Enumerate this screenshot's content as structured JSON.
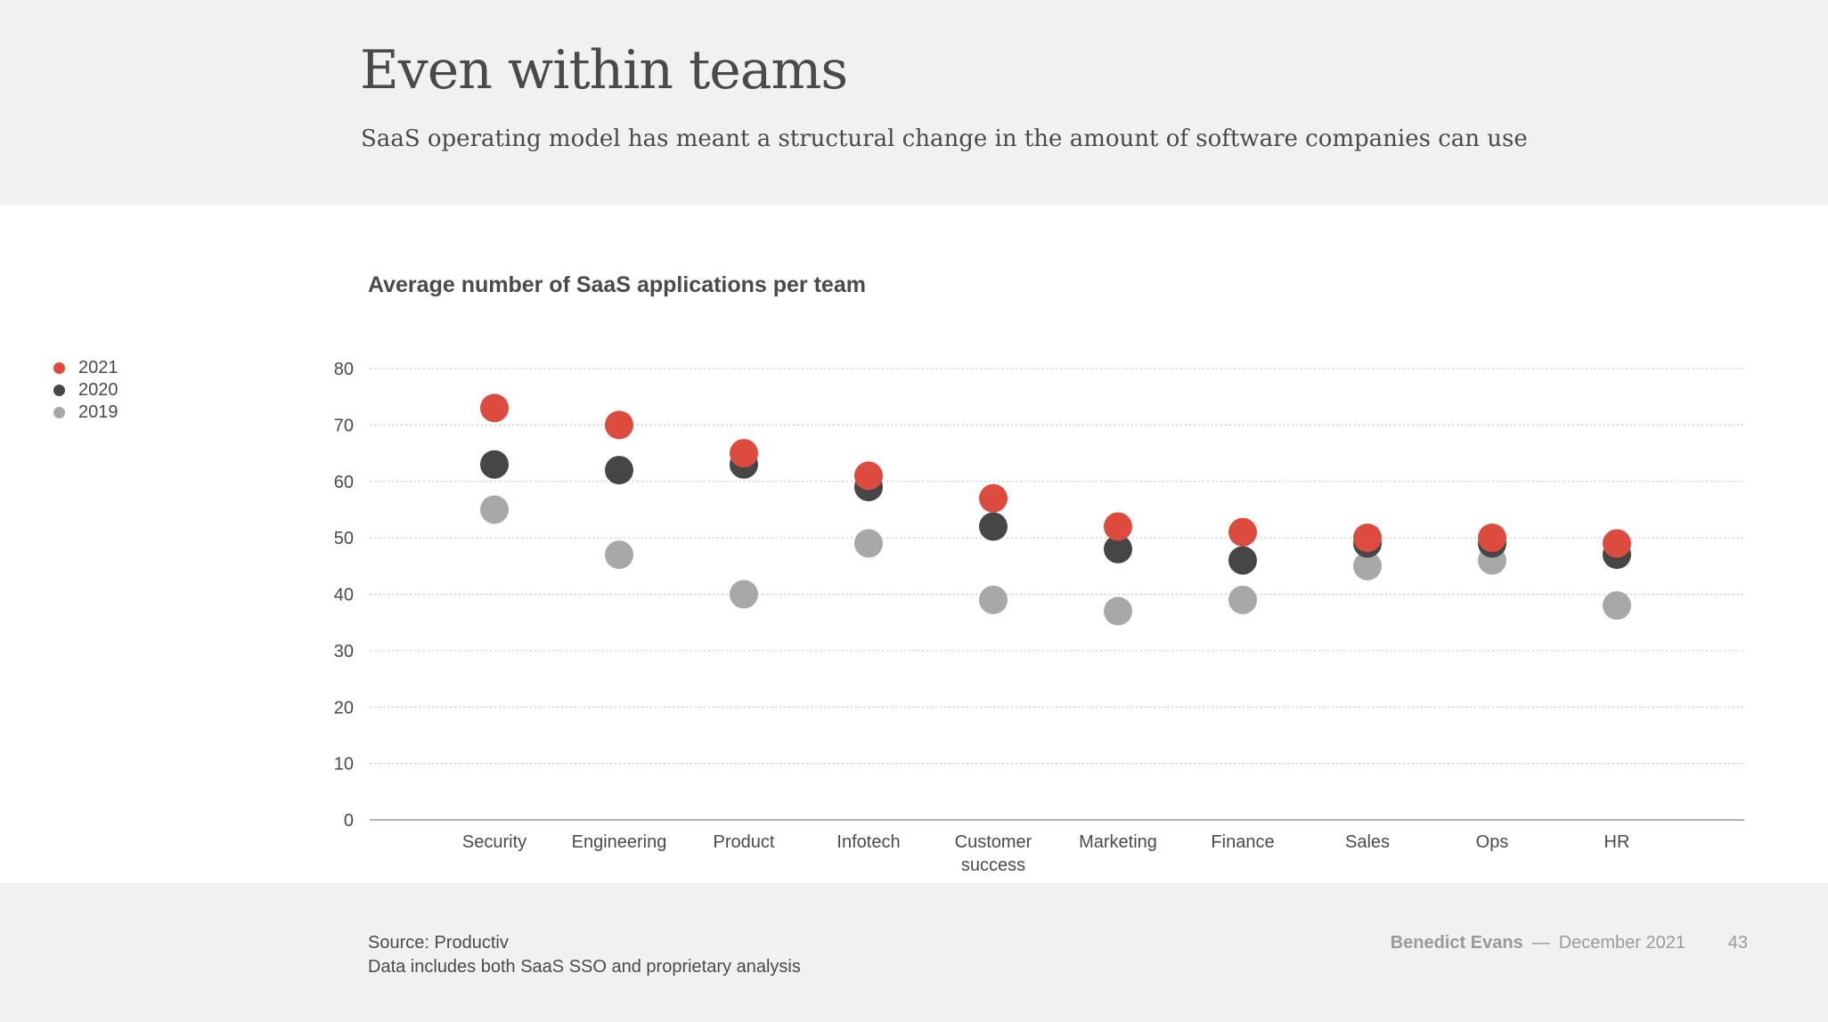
{
  "header": {
    "title": "Even within teams",
    "subtitle": "SaaS operating model has meant a structural change in the amount of software companies can use"
  },
  "footer": {
    "source_line1": "Source: Productiv",
    "source_line2": "Data includes both SaaS SSO and proprietary analysis",
    "author": "Benedict Evans",
    "separator": "—",
    "date": "December 2021",
    "page_number": "43"
  },
  "colors": {
    "2021": "#dc4b3e",
    "2020": "#464646",
    "2019": "#a8a8a8",
    "axis": "#999999",
    "grid": "#bdbdbd",
    "text": "#4a4a4a"
  },
  "chart_data": {
    "type": "scatter",
    "title": "Average number of SaaS applications per team",
    "xlabel": "",
    "ylabel": "",
    "ylim": [
      0,
      80
    ],
    "yticks": [
      0,
      10,
      20,
      30,
      40,
      50,
      60,
      70,
      80
    ],
    "grid": true,
    "legend": "left",
    "categories": [
      "Security",
      "Engineering",
      "Product",
      "Infotech",
      "Customer success",
      "Marketing",
      "Finance",
      "Sales",
      "Ops",
      "HR"
    ],
    "category_lines": [
      [
        "Security"
      ],
      [
        "Engineering"
      ],
      [
        "Product"
      ],
      [
        "Infotech"
      ],
      [
        "Customer",
        "success"
      ],
      [
        "Marketing"
      ],
      [
        "Finance"
      ],
      [
        "Sales"
      ],
      [
        "Ops"
      ],
      [
        "HR"
      ]
    ],
    "series": [
      {
        "name": "2019",
        "values": [
          55,
          47,
          40,
          49,
          39,
          37,
          39,
          45,
          46,
          38
        ]
      },
      {
        "name": "2020",
        "values": [
          63,
          62,
          63,
          59,
          52,
          48,
          46,
          49,
          49,
          47
        ]
      },
      {
        "name": "2021",
        "values": [
          73,
          70,
          65,
          61,
          57,
          52,
          51,
          50,
          50,
          49
        ]
      }
    ],
    "legend_order": [
      "2021",
      "2020",
      "2019"
    ]
  }
}
